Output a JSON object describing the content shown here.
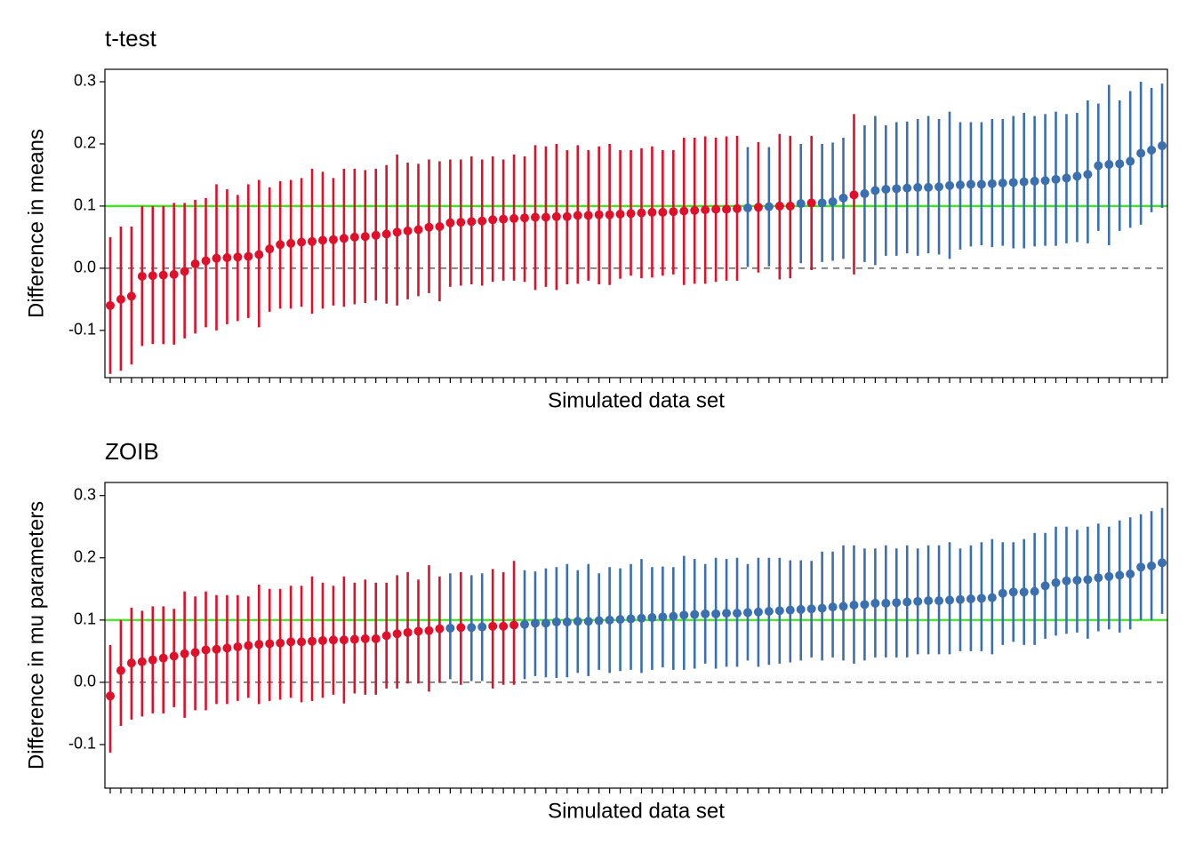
{
  "chart_data": [
    {
      "type": "errorbar",
      "title": "t-test",
      "ylabel": "Difference in means",
      "xlabel": "Simulated data set",
      "categories": [
        null,
        null,
        null,
        null,
        null,
        null,
        null,
        null,
        null,
        null,
        null,
        null,
        null,
        null,
        null,
        null,
        null,
        null,
        null,
        null,
        null,
        null,
        null,
        null,
        null,
        null,
        null,
        null,
        null,
        null,
        null,
        null,
        null,
        null,
        null,
        null,
        null,
        null,
        null,
        null,
        null,
        null,
        null,
        null,
        null,
        null,
        null,
        null,
        null,
        null,
        null,
        null,
        null,
        null,
        null,
        null,
        null,
        null,
        null,
        null,
        null,
        null,
        null,
        null,
        null,
        null,
        null,
        null,
        null,
        null,
        null,
        null,
        null,
        null,
        null,
        null,
        null,
        null,
        null,
        null,
        null,
        null,
        null,
        null,
        null,
        null,
        null,
        null,
        null,
        null,
        null,
        null,
        null,
        null,
        null,
        null,
        null,
        null,
        null,
        null
      ],
      "values": [
        -0.06,
        -0.05,
        -0.045,
        -0.013,
        -0.012,
        -0.011,
        -0.01,
        -0.005,
        0.007,
        0.012,
        0.016,
        0.017,
        0.018,
        0.019,
        0.022,
        0.031,
        0.038,
        0.04,
        0.042,
        0.043,
        0.045,
        0.046,
        0.048,
        0.05,
        0.051,
        0.053,
        0.055,
        0.058,
        0.06,
        0.062,
        0.066,
        0.067,
        0.073,
        0.074,
        0.075,
        0.076,
        0.078,
        0.079,
        0.08,
        0.081,
        0.082,
        0.082,
        0.083,
        0.083,
        0.085,
        0.085,
        0.086,
        0.086,
        0.087,
        0.088,
        0.089,
        0.09,
        0.09,
        0.091,
        0.092,
        0.093,
        0.094,
        0.095,
        0.095,
        0.096,
        0.097,
        0.098,
        0.099,
        0.1,
        0.1,
        0.104,
        0.105,
        0.105,
        0.107,
        0.113,
        0.118,
        0.12,
        0.125,
        0.127,
        0.128,
        0.129,
        0.13,
        0.13,
        0.131,
        0.133,
        0.134,
        0.135,
        0.135,
        0.136,
        0.137,
        0.138,
        0.139,
        0.14,
        0.141,
        0.143,
        0.145,
        0.148,
        0.151,
        0.165,
        0.167,
        0.168,
        0.172,
        0.185,
        0.19,
        0.197
      ],
      "lower": [
        -0.17,
        -0.165,
        -0.155,
        -0.125,
        -0.122,
        -0.122,
        -0.123,
        -0.113,
        -0.105,
        -0.095,
        -0.1,
        -0.09,
        -0.085,
        -0.08,
        -0.095,
        -0.07,
        -0.065,
        -0.065,
        -0.062,
        -0.073,
        -0.065,
        -0.06,
        -0.062,
        -0.058,
        -0.056,
        -0.052,
        -0.057,
        -0.06,
        -0.05,
        -0.045,
        -0.04,
        -0.053,
        -0.03,
        -0.028,
        -0.026,
        -0.028,
        -0.022,
        -0.02,
        -0.02,
        -0.022,
        -0.035,
        -0.03,
        -0.035,
        -0.026,
        -0.025,
        -0.02,
        -0.026,
        -0.027,
        -0.017,
        -0.012,
        -0.016,
        -0.015,
        -0.012,
        -0.01,
        -0.027,
        -0.025,
        -0.025,
        -0.022,
        -0.02,
        -0.02,
        0.002,
        -0.007,
        0.003,
        -0.018,
        -0.016,
        0.008,
        -0.003,
        0.01,
        0.012,
        0.015,
        -0.01,
        0.01,
        0.005,
        0.02,
        0.02,
        0.024,
        0.02,
        0.024,
        0.022,
        0.015,
        0.03,
        0.035,
        0.037,
        0.034,
        0.036,
        0.032,
        0.032,
        0.035,
        0.036,
        0.036,
        0.04,
        0.042,
        0.04,
        0.06,
        0.037,
        0.06,
        0.065,
        0.07,
        0.09,
        0.097
      ],
      "upper": [
        0.05,
        0.067,
        0.067,
        0.1,
        0.1,
        0.1,
        0.105,
        0.105,
        0.11,
        0.113,
        0.135,
        0.127,
        0.118,
        0.135,
        0.142,
        0.13,
        0.14,
        0.142,
        0.145,
        0.16,
        0.155,
        0.145,
        0.16,
        0.16,
        0.158,
        0.16,
        0.166,
        0.183,
        0.17,
        0.168,
        0.175,
        0.172,
        0.175,
        0.175,
        0.18,
        0.175,
        0.18,
        0.175,
        0.183,
        0.18,
        0.198,
        0.196,
        0.2,
        0.19,
        0.198,
        0.19,
        0.196,
        0.2,
        0.19,
        0.19,
        0.193,
        0.196,
        0.19,
        0.19,
        0.21,
        0.21,
        0.212,
        0.21,
        0.212,
        0.213,
        0.195,
        0.203,
        0.195,
        0.216,
        0.213,
        0.2,
        0.213,
        0.2,
        0.202,
        0.21,
        0.248,
        0.23,
        0.245,
        0.23,
        0.235,
        0.236,
        0.24,
        0.245,
        0.24,
        0.252,
        0.235,
        0.235,
        0.235,
        0.24,
        0.24,
        0.245,
        0.25,
        0.245,
        0.248,
        0.252,
        0.248,
        0.25,
        0.27,
        0.265,
        0.295,
        0.27,
        0.285,
        0.3,
        0.29,
        0.297
      ],
      "colors": {
        "includes_zero": "#e0102a",
        "excludes_zero": "#3a6fb0"
      },
      "reference_lines": [
        {
          "value": 0.1,
          "color": "#33ee11",
          "style": "solid"
        },
        {
          "value": 0,
          "color": "#444444",
          "style": "dashed"
        }
      ],
      "ylim": [
        -0.176,
        0.32
      ],
      "yticks": [
        -0.1,
        {
          "value": 0,
          "label": "0.0"
        },
        0.1,
        0.2,
        0.3
      ]
    },
    {
      "type": "errorbar",
      "title": "ZOIB",
      "ylabel": "Difference in mu parameters",
      "xlabel": "Simulated data set",
      "categories": [
        null,
        null,
        null,
        null,
        null,
        null,
        null,
        null,
        null,
        null,
        null,
        null,
        null,
        null,
        null,
        null,
        null,
        null,
        null,
        null,
        null,
        null,
        null,
        null,
        null,
        null,
        null,
        null,
        null,
        null,
        null,
        null,
        null,
        null,
        null,
        null,
        null,
        null,
        null,
        null,
        null,
        null,
        null,
        null,
        null,
        null,
        null,
        null,
        null,
        null,
        null,
        null,
        null,
        null,
        null,
        null,
        null,
        null,
        null,
        null,
        null,
        null,
        null,
        null,
        null,
        null,
        null,
        null,
        null,
        null,
        null,
        null,
        null,
        null,
        null,
        null,
        null,
        null,
        null,
        null,
        null,
        null,
        null,
        null,
        null,
        null,
        null,
        null,
        null,
        null,
        null,
        null,
        null,
        null,
        null,
        null,
        null,
        null,
        null,
        null
      ],
      "values": [
        -0.022,
        0.019,
        0.031,
        0.033,
        0.036,
        0.039,
        0.042,
        0.046,
        0.048,
        0.052,
        0.053,
        0.055,
        0.057,
        0.059,
        0.061,
        0.062,
        0.063,
        0.065,
        0.065,
        0.066,
        0.067,
        0.068,
        0.068,
        0.069,
        0.07,
        0.07,
        0.075,
        0.078,
        0.08,
        0.082,
        0.083,
        0.086,
        0.087,
        0.088,
        0.088,
        0.089,
        0.09,
        0.09,
        0.092,
        0.093,
        0.095,
        0.095,
        0.097,
        0.097,
        0.098,
        0.098,
        0.099,
        0.1,
        0.101,
        0.102,
        0.103,
        0.104,
        0.105,
        0.106,
        0.108,
        0.109,
        0.11,
        0.11,
        0.111,
        0.111,
        0.112,
        0.113,
        0.114,
        0.115,
        0.116,
        0.117,
        0.118,
        0.119,
        0.121,
        0.122,
        0.124,
        0.125,
        0.127,
        0.127,
        0.128,
        0.129,
        0.13,
        0.131,
        0.131,
        0.132,
        0.133,
        0.134,
        0.135,
        0.136,
        0.143,
        0.145,
        0.145,
        0.146,
        0.155,
        0.16,
        0.163,
        0.164,
        0.165,
        0.168,
        0.17,
        0.172,
        0.174,
        0.185,
        0.187,
        0.192
      ],
      "lower": [
        -0.113,
        -0.07,
        -0.06,
        -0.055,
        -0.05,
        -0.05,
        -0.04,
        -0.057,
        -0.045,
        -0.045,
        -0.035,
        -0.035,
        -0.03,
        -0.025,
        -0.035,
        -0.03,
        -0.028,
        -0.025,
        -0.032,
        -0.03,
        -0.025,
        -0.02,
        -0.034,
        -0.018,
        -0.02,
        -0.02,
        -0.01,
        -0.01,
        -0.002,
        -0.002,
        -0.015,
        -0.001,
        0.005,
        -0.004,
        0.002,
        0.002,
        -0.01,
        -0.004,
        -0.004,
        0.005,
        0.01,
        0.008,
        0.007,
        0.008,
        0.015,
        0.01,
        0.02,
        0.015,
        0.018,
        0.02,
        0.015,
        0.02,
        0.024,
        0.02,
        0.02,
        0.022,
        0.03,
        0.022,
        0.025,
        0.025,
        0.035,
        0.025,
        0.028,
        0.03,
        0.032,
        0.035,
        0.04,
        0.035,
        0.04,
        0.035,
        0.03,
        0.035,
        0.04,
        0.04,
        0.04,
        0.04,
        0.045,
        0.045,
        0.045,
        0.045,
        0.05,
        0.05,
        0.05,
        0.045,
        0.06,
        0.065,
        0.06,
        0.06,
        0.07,
        0.075,
        0.078,
        0.08,
        0.07,
        0.082,
        0.085,
        0.08,
        0.085,
        0.1,
        0.1,
        0.11
      ],
      "upper": [
        0.06,
        0.1,
        0.12,
        0.115,
        0.122,
        0.122,
        0.118,
        0.146,
        0.138,
        0.146,
        0.14,
        0.14,
        0.14,
        0.138,
        0.157,
        0.15,
        0.15,
        0.155,
        0.155,
        0.17,
        0.16,
        0.155,
        0.17,
        0.16,
        0.165,
        0.16,
        0.16,
        0.172,
        0.177,
        0.165,
        0.188,
        0.17,
        0.175,
        0.177,
        0.172,
        0.175,
        0.182,
        0.177,
        0.195,
        0.18,
        0.178,
        0.183,
        0.185,
        0.19,
        0.18,
        0.19,
        0.175,
        0.185,
        0.183,
        0.19,
        0.198,
        0.185,
        0.186,
        0.185,
        0.203,
        0.198,
        0.19,
        0.2,
        0.198,
        0.2,
        0.19,
        0.2,
        0.2,
        0.2,
        0.196,
        0.196,
        0.195,
        0.21,
        0.21,
        0.22,
        0.22,
        0.215,
        0.215,
        0.22,
        0.215,
        0.22,
        0.215,
        0.22,
        0.22,
        0.225,
        0.215,
        0.22,
        0.225,
        0.23,
        0.225,
        0.225,
        0.23,
        0.24,
        0.24,
        0.25,
        0.25,
        0.245,
        0.25,
        0.255,
        0.25,
        0.26,
        0.265,
        0.27,
        0.275,
        0.28
      ],
      "colors": {
        "includes_zero": "#e0102a",
        "excludes_zero": "#3a6fb0"
      },
      "reference_lines": [
        {
          "value": 0.1,
          "color": "#33ee11",
          "style": "solid"
        },
        {
          "value": 0,
          "color": "#444444",
          "style": "dashed"
        }
      ],
      "ylim": [
        -0.17,
        0.321
      ],
      "yticks": [
        -0.1,
        {
          "value": 0,
          "label": "0.0"
        },
        0.1,
        0.2,
        0.3
      ]
    }
  ]
}
